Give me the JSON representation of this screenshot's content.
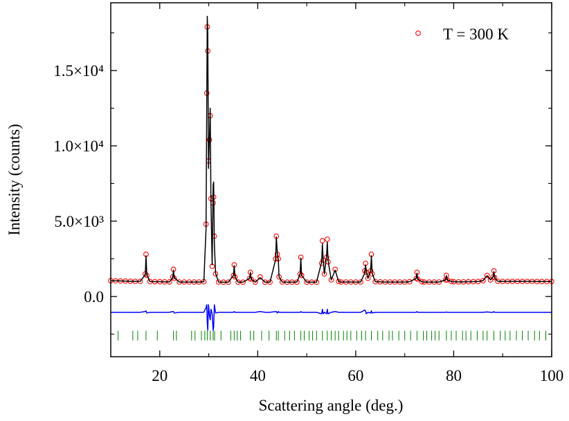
{
  "chart_data": {
    "type": "rietveld",
    "x_label": "Scattering angle (deg.)",
    "y_label": "Intensity (counts)",
    "xlim": [
      10,
      100
    ],
    "xticks": [
      20,
      40,
      60,
      80,
      100
    ],
    "ylim": [
      -4000,
      19500
    ],
    "yticks": [
      {
        "value": 0,
        "label": "0.0"
      },
      {
        "value": 5000,
        "label": "5.0×10³"
      },
      {
        "value": 10000,
        "label": "1.0×10⁴"
      },
      {
        "value": 15000,
        "label": "1.5×10⁴"
      }
    ],
    "legend": "upper right",
    "x": [
      10,
      11,
      12,
      13,
      14,
      15,
      16,
      17.05,
      17.2,
      17.35,
      18,
      19,
      20,
      21,
      22,
      22.65,
      22.8,
      22.95,
      24,
      25,
      26,
      27,
      28,
      29,
      29.45,
      29.6,
      29.7,
      29.8,
      29.95,
      30.15,
      30.3,
      30.45,
      30.7,
      30.9,
      31.0,
      31.15,
      31.4,
      32,
      33,
      34,
      35.05,
      35.2,
      35.35,
      36,
      37,
      38.35,
      38.5,
      38.65,
      39.5,
      40.5,
      41.5,
      42.5,
      43.65,
      43.8,
      44.0,
      44.2,
      44.35,
      45,
      46,
      47,
      48,
      48.65,
      48.8,
      48.95,
      50,
      51,
      52,
      53.05,
      53.2,
      53.35,
      53.6,
      54.05,
      54.2,
      54.35,
      55,
      55.8,
      56.5,
      57,
      58,
      59,
      60,
      61,
      61.85,
      62.0,
      62.15,
      62.5,
      63.05,
      63.2,
      63.35,
      64,
      65,
      66,
      67,
      68,
      69,
      70,
      71,
      72.35,
      72.5,
      72.65,
      73.5,
      74,
      75,
      76,
      77,
      78.35,
      78.5,
      78.65,
      79.5,
      80,
      81,
      82,
      83,
      84,
      85,
      86,
      86.8,
      87.5,
      88.05,
      88.2,
      88.35,
      89,
      90,
      91,
      92,
      93,
      94,
      95,
      96,
      97,
      98,
      99,
      100
    ],
    "series": [
      {
        "name": "T = 300 K",
        "color": "#ff0000",
        "style": "circles",
        "values": [
          1050,
          1040,
          1030,
          1020,
          1010,
          1000,
          1000,
          1500,
          2800,
          1400,
          990,
          980,
          980,
          970,
          970,
          1300,
          1800,
          1200,
          960,
          960,
          960,
          960,
          960,
          980,
          4800,
          13500,
          17900,
          16300,
          9000,
          10400,
          12000,
          6500,
          2000,
          6200,
          6600,
          4000,
          1500,
          960,
          950,
          950,
          1400,
          2100,
          1300,
          950,
          950,
          1200,
          1600,
          1150,
          950,
          1300,
          950,
          950,
          2500,
          4000,
          2800,
          2500,
          1300,
          960,
          950,
          950,
          950,
          1500,
          2600,
          1400,
          950,
          950,
          950,
          2200,
          3700,
          2400,
          1500,
          2600,
          3800,
          2300,
          1100,
          1800,
          1000,
          960,
          960,
          960,
          960,
          960,
          1700,
          2200,
          1600,
          1200,
          1700,
          2800,
          1500,
          980,
          970,
          960,
          960,
          960,
          960,
          960,
          980,
          1200,
          1600,
          1150,
          980,
          960,
          960,
          960,
          960,
          1100,
          1400,
          1100,
          1000,
          980,
          970,
          970,
          980,
          980,
          990,
          1050,
          1400,
          1100,
          1300,
          1700,
          1250,
          1000,
          1000,
          1000,
          1000,
          1000,
          1000,
          1000,
          1000,
          990,
          990,
          990,
          990
        ]
      },
      {
        "color": "#000000",
        "style": "line",
        "values": [
          1050,
          1040,
          1030,
          1020,
          1010,
          1000,
          1000,
          1450,
          2700,
          1450,
          990,
          980,
          980,
          970,
          970,
          1250,
          1750,
          1250,
          960,
          960,
          960,
          960,
          960,
          980,
          4500,
          13000,
          18600,
          17500,
          8500,
          10600,
          12500,
          6300,
          2100,
          7400,
          7600,
          3500,
          1550,
          960,
          950,
          950,
          1400,
          2050,
          1300,
          950,
          950,
          1200,
          1600,
          1150,
          950,
          1250,
          950,
          950,
          2450,
          3950,
          2850,
          2450,
          1300,
          960,
          950,
          950,
          950,
          1500,
          2550,
          1400,
          950,
          950,
          950,
          2300,
          3500,
          2500,
          1500,
          2700,
          3600,
          2400,
          1100,
          1750,
          1000,
          960,
          960,
          960,
          960,
          960,
          1550,
          2100,
          1700,
          1200,
          1750,
          2700,
          1550,
          980,
          970,
          960,
          960,
          960,
          960,
          960,
          980,
          1200,
          1550,
          1150,
          980,
          960,
          960,
          960,
          960,
          1100,
          1380,
          1100,
          1000,
          980,
          970,
          970,
          980,
          980,
          990,
          1050,
          1380,
          1100,
          1300,
          1650,
          1250,
          1000,
          1000,
          1000,
          1000,
          1000,
          1000,
          1000,
          1000,
          990,
          990,
          990,
          990
        ]
      },
      {
        "color": "#0000ff",
        "style": "line",
        "values": [
          -1050,
          -1050,
          -1050,
          -1050,
          -1050,
          -1050,
          -1050,
          -1000,
          -950,
          -1100,
          -1050,
          -1050,
          -1050,
          -1050,
          -1050,
          -1000,
          -1000,
          -1100,
          -1050,
          -1050,
          -1050,
          -1050,
          -1050,
          -1050,
          -750,
          -550,
          -1750,
          -2250,
          -550,
          -1250,
          -1550,
          -850,
          -1150,
          -2250,
          -2050,
          -550,
          -1100,
          -1050,
          -1050,
          -1050,
          -1050,
          -1000,
          -1050,
          -1050,
          -1050,
          -1050,
          -1050,
          -1050,
          -1050,
          -1000,
          -1050,
          -1050,
          -1000,
          -1000,
          -1100,
          -1000,
          -1050,
          -1050,
          -1050,
          -1050,
          -1050,
          -1050,
          -1000,
          -1050,
          -1050,
          -1050,
          -1050,
          -1150,
          -850,
          -1150,
          -1050,
          -1150,
          -850,
          -1150,
          -1050,
          -1000,
          -1050,
          -1050,
          -1050,
          -1050,
          -1050,
          -1050,
          -900,
          -950,
          -1150,
          -1050,
          -1100,
          -950,
          -1100,
          -1050,
          -1050,
          -1050,
          -1050,
          -1050,
          -1050,
          -1050,
          -1050,
          -1050,
          -1000,
          -1050,
          -1050,
          -1050,
          -1050,
          -1050,
          -1050,
          -1050,
          -1030,
          -1050,
          -1050,
          -1050,
          -1050,
          -1050,
          -1050,
          -1050,
          -1050,
          -1050,
          -1030,
          -1050,
          -1050,
          -1000,
          -1050,
          -1050,
          -1050,
          -1050,
          -1050,
          -1050,
          -1050,
          -1050,
          -1050,
          -1050,
          -1050,
          -1050,
          -1050
        ]
      }
    ],
    "bragg_color": "#008000",
    "bragg_positions": [
      11.5,
      14.5,
      15.5,
      17.2,
      19.5,
      22.8,
      23.4,
      26.5,
      27.2,
      28.5,
      29.2,
      29.7,
      30.3,
      30.9,
      31.2,
      32.5,
      34.5,
      35.2,
      35.8,
      36.5,
      38.5,
      39.2,
      40.8,
      42.3,
      43.8,
      44.2,
      45.5,
      46.5,
      47.5,
      48.8,
      49.5,
      50.5,
      51.2,
      52.0,
      53.2,
      54.2,
      55.0,
      55.8,
      56.5,
      57.5,
      58.2,
      59.0,
      60.2,
      61.2,
      62.0,
      63.2,
      64.5,
      65.5,
      66.8,
      67.5,
      68.8,
      70.0,
      71.2,
      72.5,
      73.8,
      74.5,
      75.5,
      76.2,
      77.0,
      78.5,
      79.5,
      80.5,
      81.8,
      82.5,
      83.5,
      84.8,
      86.0,
      86.8,
      88.2,
      89.5,
      90.5,
      91.5,
      92.8,
      94.0,
      95.2,
      96.5,
      97.5,
      98.8
    ]
  }
}
